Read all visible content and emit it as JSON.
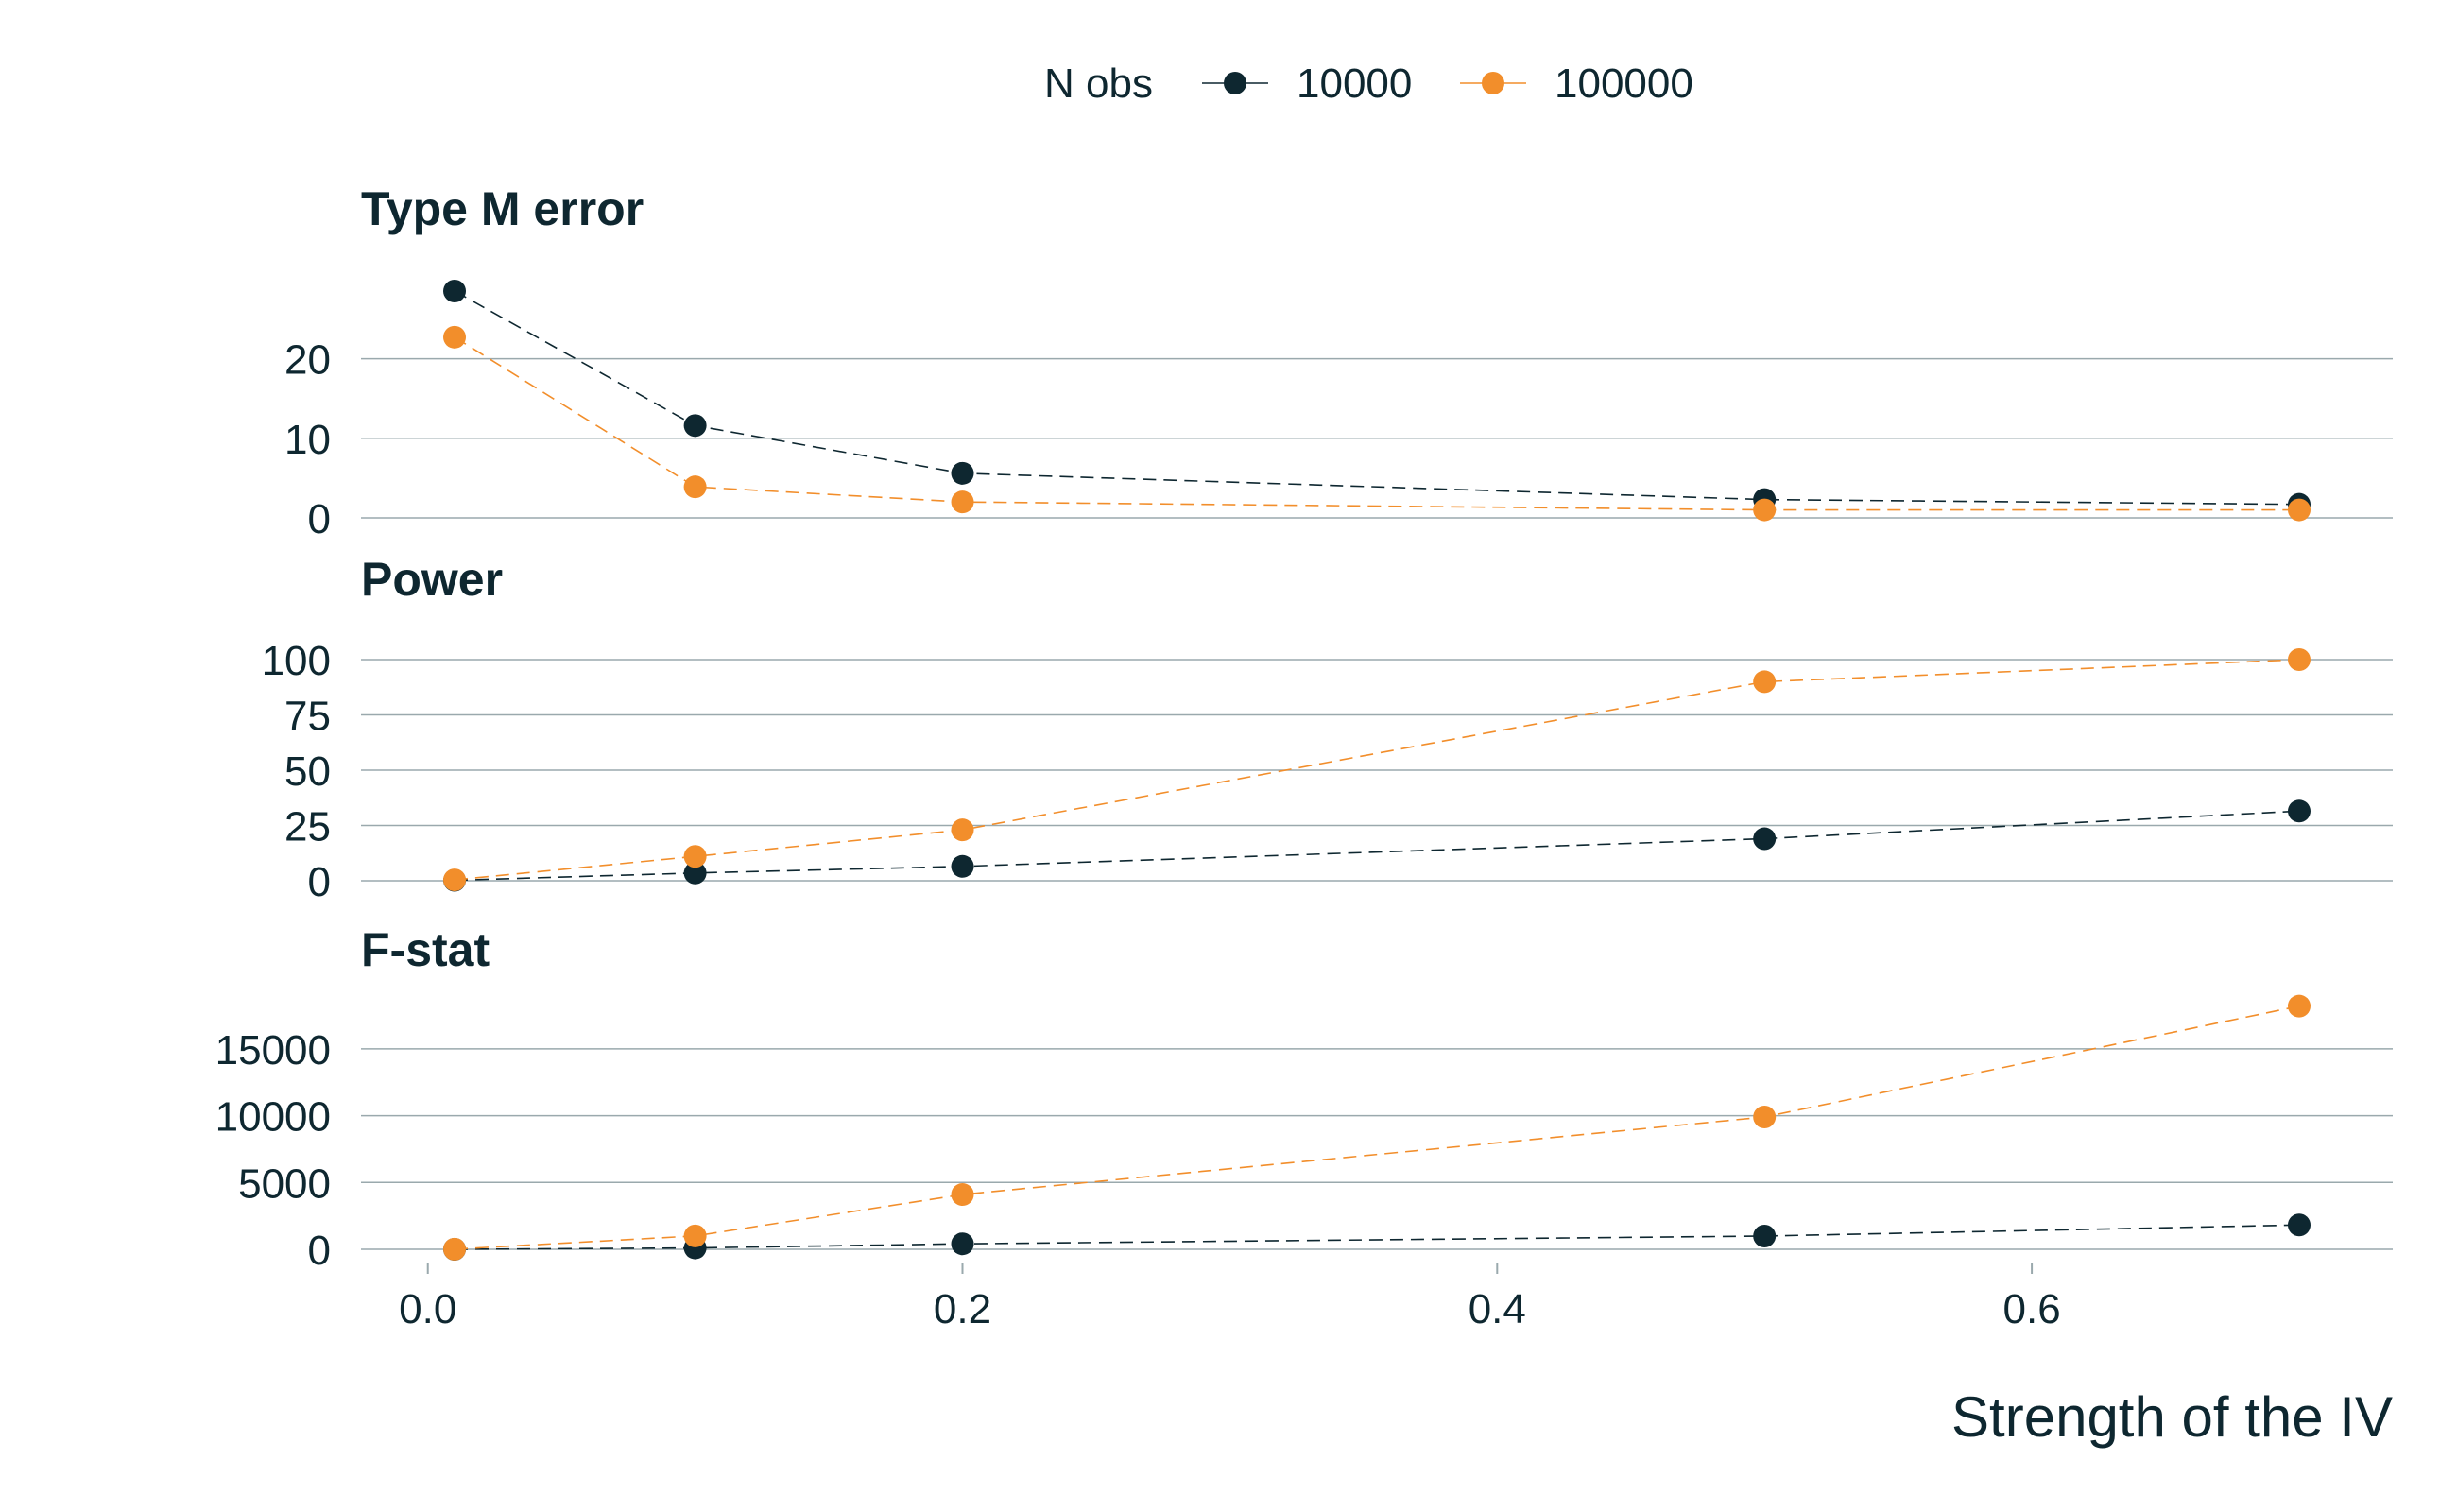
{
  "legend": {
    "title": "N obs",
    "entries": [
      "10000",
      "100000"
    ]
  },
  "colors": {
    "series_10000": "#0e2730",
    "series_100000": "#f28e2b",
    "text": "#0e2730",
    "grid": "#9aa9ad"
  },
  "chart_data": {
    "type": "line",
    "xlabel": "Strength of the IV",
    "x": [
      0.01,
      0.1,
      0.2,
      0.5,
      0.7
    ],
    "xlim": [
      -0.025,
      0.735
    ],
    "xticks": [
      "0.0",
      "0.2",
      "0.4",
      "0.6"
    ],
    "xtick_values": [
      0.0,
      0.2,
      0.4,
      0.6
    ],
    "grid": true,
    "legend_position": "top",
    "line_style": "dashed",
    "panels": [
      {
        "title": "Type M error",
        "yticks": [
          "0",
          "10",
          "20"
        ],
        "ytick_values": [
          0,
          10,
          20
        ],
        "ylim": [
          0,
          28.5
        ],
        "series": [
          {
            "name": "10000",
            "values": [
              28.5,
              11.6,
              5.6,
              2.3,
              1.7
            ]
          },
          {
            "name": "100000",
            "values": [
              22.7,
              3.9,
              2.0,
              1.0,
              1.0
            ]
          }
        ]
      },
      {
        "title": "Power",
        "yticks": [
          "0",
          "25",
          "50",
          "75",
          "100"
        ],
        "ytick_values": [
          0,
          25,
          50,
          75,
          100
        ],
        "ylim": [
          0,
          100
        ],
        "series": [
          {
            "name": "10000",
            "values": [
              0.2,
              3.5,
              6.5,
              19,
              31.5
            ]
          },
          {
            "name": "100000",
            "values": [
              0.4,
              11,
              23,
              90,
              100
            ]
          }
        ]
      },
      {
        "title": "F-stat",
        "yticks": [
          "0",
          "5000",
          "10000",
          "15000"
        ],
        "ytick_values": [
          0,
          5000,
          10000,
          15000
        ],
        "ylim": [
          0,
          15700
        ],
        "series": [
          {
            "name": "10000",
            "values": [
              1,
              100,
              410,
              990,
              1820
            ]
          },
          {
            "name": "100000",
            "values": [
              10,
              1000,
              4100,
              9900,
              18200
            ]
          }
        ]
      }
    ]
  }
}
